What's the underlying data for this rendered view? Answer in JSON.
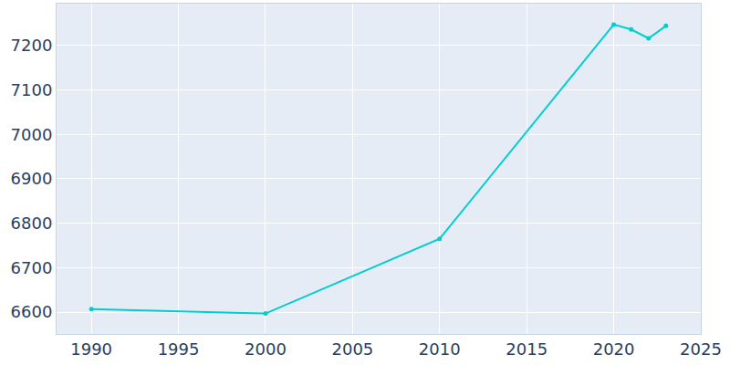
{
  "chart_data": {
    "type": "line",
    "x": [
      1990,
      2000,
      2010,
      2020,
      2021,
      2022,
      2023
    ],
    "values": [
      6607,
      6597,
      6765,
      7247,
      7236,
      7216,
      7244
    ],
    "color": "#00cdd0",
    "marker": "circle",
    "xlim": [
      1988,
      2025
    ],
    "xticks": [
      1990,
      1995,
      2000,
      2005,
      2010,
      2015,
      2020,
      2025
    ],
    "ylim": [
      6551,
      7294
    ],
    "yticks": [
      6600,
      6700,
      6800,
      6900,
      7000,
      7100,
      7200
    ],
    "grid": true
  }
}
